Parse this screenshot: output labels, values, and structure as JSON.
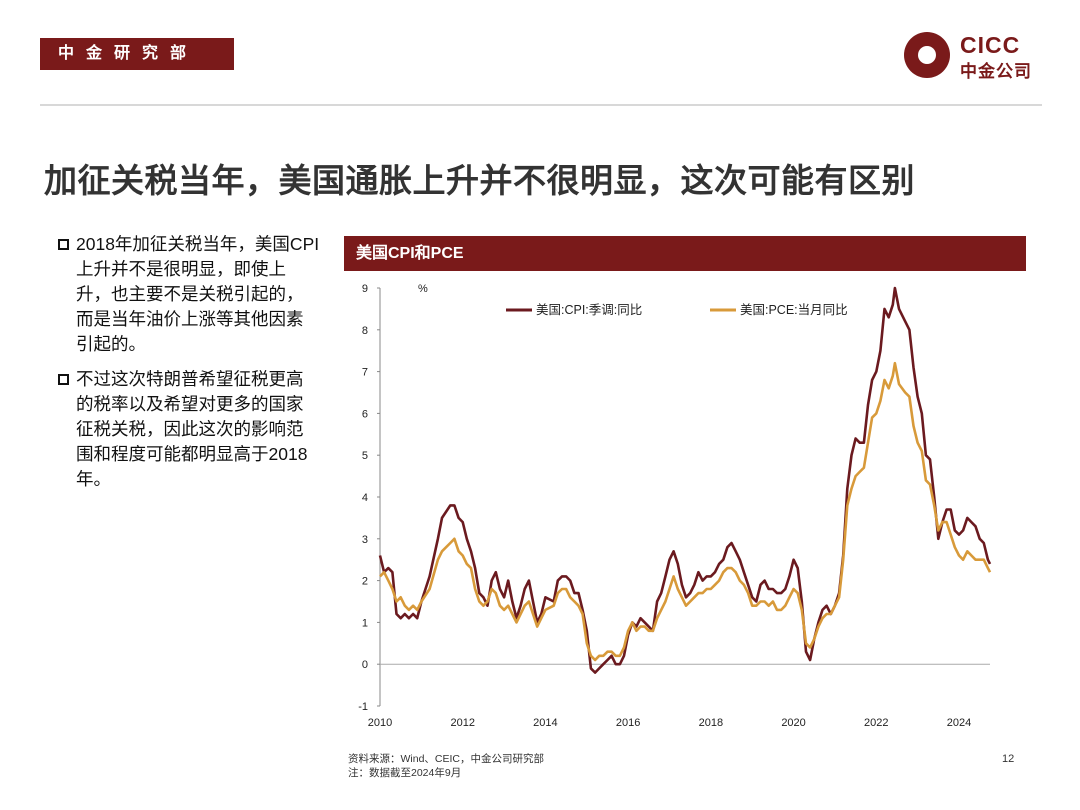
{
  "header": {
    "dept": "中金研究部",
    "logo_en": "CICC",
    "logo_cn": "中金公司"
  },
  "title": "加征关税当年，美国通胀上升并不很明显，这次可能有区别",
  "bullets": [
    "2018年加征关税当年，美国CPI上升并不是很明显，即使上升，也主要不是关税引起的，而是当年油价上涨等其他因素引起的。",
    "不过这次特朗普希望征税更高的税率以及希望对更多的国家征税关税，因此这次的影响范围和程度可能都明显高于2018年。"
  ],
  "chart_data": {
    "type": "line",
    "title": "美国CPI和PCE",
    "ylabel": "%",
    "xlabel": "",
    "ylim": [
      -1,
      9
    ],
    "yticks": [
      "-1",
      "0",
      "1",
      "2",
      "3",
      "4",
      "5",
      "6",
      "7",
      "8",
      "9"
    ],
    "xlim": [
      2010,
      2024.75
    ],
    "xticks": [
      "2010",
      "2012",
      "2014",
      "2016",
      "2018",
      "2020",
      "2022",
      "2024"
    ],
    "legend_position": "top",
    "series": [
      {
        "name": "美国:CPI:季调:同比",
        "color": "#6b1a1f",
        "points": [
          [
            2010.0,
            2.6
          ],
          [
            2010.1,
            2.2
          ],
          [
            2010.2,
            2.3
          ],
          [
            2010.3,
            2.2
          ],
          [
            2010.4,
            1.2
          ],
          [
            2010.5,
            1.1
          ],
          [
            2010.6,
            1.2
          ],
          [
            2010.7,
            1.1
          ],
          [
            2010.8,
            1.2
          ],
          [
            2010.9,
            1.1
          ],
          [
            2011.0,
            1.5
          ],
          [
            2011.2,
            2.1
          ],
          [
            2011.4,
            3.0
          ],
          [
            2011.5,
            3.5
          ],
          [
            2011.7,
            3.8
          ],
          [
            2011.8,
            3.8
          ],
          [
            2011.9,
            3.5
          ],
          [
            2012.0,
            3.4
          ],
          [
            2012.1,
            3.0
          ],
          [
            2012.2,
            2.7
          ],
          [
            2012.3,
            2.3
          ],
          [
            2012.4,
            1.7
          ],
          [
            2012.5,
            1.6
          ],
          [
            2012.6,
            1.4
          ],
          [
            2012.7,
            2.0
          ],
          [
            2012.8,
            2.2
          ],
          [
            2012.9,
            1.8
          ],
          [
            2013.0,
            1.6
          ],
          [
            2013.1,
            2.0
          ],
          [
            2013.2,
            1.5
          ],
          [
            2013.3,
            1.1
          ],
          [
            2013.4,
            1.4
          ],
          [
            2013.5,
            1.8
          ],
          [
            2013.6,
            2.0
          ],
          [
            2013.7,
            1.5
          ],
          [
            2013.8,
            1.0
          ],
          [
            2013.9,
            1.2
          ],
          [
            2014.0,
            1.6
          ],
          [
            2014.2,
            1.5
          ],
          [
            2014.3,
            2.0
          ],
          [
            2014.4,
            2.1
          ],
          [
            2014.5,
            2.1
          ],
          [
            2014.6,
            2.0
          ],
          [
            2014.7,
            1.7
          ],
          [
            2014.8,
            1.7
          ],
          [
            2014.9,
            1.3
          ],
          [
            2015.0,
            0.8
          ],
          [
            2015.1,
            -0.1
          ],
          [
            2015.2,
            -0.2
          ],
          [
            2015.3,
            -0.1
          ],
          [
            2015.4,
            0.0
          ],
          [
            2015.5,
            0.1
          ],
          [
            2015.6,
            0.2
          ],
          [
            2015.7,
            0.0
          ],
          [
            2015.8,
            0.0
          ],
          [
            2015.9,
            0.2
          ],
          [
            2016.0,
            0.7
          ],
          [
            2016.1,
            1.0
          ],
          [
            2016.2,
            0.9
          ],
          [
            2016.3,
            1.1
          ],
          [
            2016.4,
            1.0
          ],
          [
            2016.5,
            0.9
          ],
          [
            2016.6,
            0.8
          ],
          [
            2016.7,
            1.5
          ],
          [
            2016.8,
            1.7
          ],
          [
            2016.9,
            2.1
          ],
          [
            2017.0,
            2.5
          ],
          [
            2017.1,
            2.7
          ],
          [
            2017.2,
            2.4
          ],
          [
            2017.3,
            1.9
          ],
          [
            2017.4,
            1.6
          ],
          [
            2017.5,
            1.7
          ],
          [
            2017.6,
            1.9
          ],
          [
            2017.7,
            2.2
          ],
          [
            2017.8,
            2.0
          ],
          [
            2017.9,
            2.1
          ],
          [
            2018.0,
            2.1
          ],
          [
            2018.1,
            2.2
          ],
          [
            2018.2,
            2.4
          ],
          [
            2018.3,
            2.5
          ],
          [
            2018.4,
            2.8
          ],
          [
            2018.5,
            2.9
          ],
          [
            2018.6,
            2.7
          ],
          [
            2018.7,
            2.5
          ],
          [
            2018.8,
            2.2
          ],
          [
            2018.9,
            1.9
          ],
          [
            2019.0,
            1.6
          ],
          [
            2019.1,
            1.5
          ],
          [
            2019.2,
            1.9
          ],
          [
            2019.3,
            2.0
          ],
          [
            2019.4,
            1.8
          ],
          [
            2019.5,
            1.8
          ],
          [
            2019.6,
            1.7
          ],
          [
            2019.7,
            1.7
          ],
          [
            2019.8,
            1.8
          ],
          [
            2019.9,
            2.1
          ],
          [
            2020.0,
            2.5
          ],
          [
            2020.1,
            2.3
          ],
          [
            2020.2,
            1.5
          ],
          [
            2020.3,
            0.3
          ],
          [
            2020.4,
            0.1
          ],
          [
            2020.5,
            0.6
          ],
          [
            2020.6,
            1.0
          ],
          [
            2020.7,
            1.3
          ],
          [
            2020.8,
            1.4
          ],
          [
            2020.9,
            1.2
          ],
          [
            2021.0,
            1.4
          ],
          [
            2021.1,
            1.7
          ],
          [
            2021.2,
            2.6
          ],
          [
            2021.3,
            4.2
          ],
          [
            2021.4,
            5.0
          ],
          [
            2021.5,
            5.4
          ],
          [
            2021.6,
            5.3
          ],
          [
            2021.7,
            5.3
          ],
          [
            2021.8,
            6.2
          ],
          [
            2021.9,
            6.8
          ],
          [
            2022.0,
            7.0
          ],
          [
            2022.1,
            7.5
          ],
          [
            2022.2,
            8.5
          ],
          [
            2022.3,
            8.3
          ],
          [
            2022.4,
            8.6
          ],
          [
            2022.45,
            9.0
          ],
          [
            2022.55,
            8.5
          ],
          [
            2022.7,
            8.2
          ],
          [
            2022.8,
            8.0
          ],
          [
            2022.9,
            7.1
          ],
          [
            2023.0,
            6.4
          ],
          [
            2023.1,
            6.0
          ],
          [
            2023.2,
            5.0
          ],
          [
            2023.3,
            4.9
          ],
          [
            2023.4,
            4.0
          ],
          [
            2023.5,
            3.0
          ],
          [
            2023.6,
            3.4
          ],
          [
            2023.7,
            3.7
          ],
          [
            2023.8,
            3.7
          ],
          [
            2023.9,
            3.2
          ],
          [
            2024.0,
            3.1
          ],
          [
            2024.1,
            3.2
          ],
          [
            2024.2,
            3.5
          ],
          [
            2024.3,
            3.4
          ],
          [
            2024.4,
            3.3
          ],
          [
            2024.5,
            3.0
          ],
          [
            2024.6,
            2.9
          ],
          [
            2024.7,
            2.5
          ],
          [
            2024.75,
            2.4
          ]
        ]
      },
      {
        "name": "美国:PCE:当月同比",
        "color": "#d89a3a",
        "points": [
          [
            2010.0,
            2.1
          ],
          [
            2010.1,
            2.2
          ],
          [
            2010.2,
            2.0
          ],
          [
            2010.3,
            1.8
          ],
          [
            2010.4,
            1.5
          ],
          [
            2010.5,
            1.6
          ],
          [
            2010.6,
            1.4
          ],
          [
            2010.7,
            1.3
          ],
          [
            2010.8,
            1.4
          ],
          [
            2010.9,
            1.3
          ],
          [
            2011.0,
            1.5
          ],
          [
            2011.2,
            1.8
          ],
          [
            2011.4,
            2.5
          ],
          [
            2011.5,
            2.7
          ],
          [
            2011.7,
            2.9
          ],
          [
            2011.8,
            3.0
          ],
          [
            2011.9,
            2.7
          ],
          [
            2012.0,
            2.6
          ],
          [
            2012.1,
            2.4
          ],
          [
            2012.2,
            2.3
          ],
          [
            2012.3,
            1.8
          ],
          [
            2012.4,
            1.5
          ],
          [
            2012.5,
            1.4
          ],
          [
            2012.6,
            1.5
          ],
          [
            2012.7,
            1.8
          ],
          [
            2012.8,
            1.7
          ],
          [
            2012.9,
            1.4
          ],
          [
            2013.0,
            1.3
          ],
          [
            2013.1,
            1.4
          ],
          [
            2013.2,
            1.2
          ],
          [
            2013.3,
            1.0
          ],
          [
            2013.4,
            1.2
          ],
          [
            2013.5,
            1.4
          ],
          [
            2013.6,
            1.5
          ],
          [
            2013.7,
            1.2
          ],
          [
            2013.8,
            0.9
          ],
          [
            2013.9,
            1.1
          ],
          [
            2014.0,
            1.3
          ],
          [
            2014.2,
            1.4
          ],
          [
            2014.3,
            1.7
          ],
          [
            2014.4,
            1.8
          ],
          [
            2014.5,
            1.8
          ],
          [
            2014.6,
            1.6
          ],
          [
            2014.7,
            1.5
          ],
          [
            2014.8,
            1.4
          ],
          [
            2014.9,
            1.2
          ],
          [
            2015.0,
            0.5
          ],
          [
            2015.1,
            0.2
          ],
          [
            2015.2,
            0.1
          ],
          [
            2015.3,
            0.2
          ],
          [
            2015.4,
            0.2
          ],
          [
            2015.5,
            0.3
          ],
          [
            2015.6,
            0.3
          ],
          [
            2015.7,
            0.2
          ],
          [
            2015.8,
            0.2
          ],
          [
            2015.9,
            0.4
          ],
          [
            2016.0,
            0.8
          ],
          [
            2016.1,
            1.0
          ],
          [
            2016.2,
            0.8
          ],
          [
            2016.3,
            0.9
          ],
          [
            2016.4,
            0.9
          ],
          [
            2016.5,
            0.8
          ],
          [
            2016.6,
            0.8
          ],
          [
            2016.7,
            1.1
          ],
          [
            2016.8,
            1.3
          ],
          [
            2016.9,
            1.5
          ],
          [
            2017.0,
            1.8
          ],
          [
            2017.1,
            2.1
          ],
          [
            2017.2,
            1.8
          ],
          [
            2017.3,
            1.6
          ],
          [
            2017.4,
            1.4
          ],
          [
            2017.5,
            1.5
          ],
          [
            2017.6,
            1.6
          ],
          [
            2017.7,
            1.7
          ],
          [
            2017.8,
            1.7
          ],
          [
            2017.9,
            1.8
          ],
          [
            2018.0,
            1.8
          ],
          [
            2018.1,
            1.9
          ],
          [
            2018.2,
            2.0
          ],
          [
            2018.3,
            2.2
          ],
          [
            2018.4,
            2.3
          ],
          [
            2018.5,
            2.3
          ],
          [
            2018.6,
            2.2
          ],
          [
            2018.7,
            2.0
          ],
          [
            2018.8,
            1.9
          ],
          [
            2018.9,
            1.7
          ],
          [
            2019.0,
            1.4
          ],
          [
            2019.1,
            1.4
          ],
          [
            2019.2,
            1.5
          ],
          [
            2019.3,
            1.5
          ],
          [
            2019.4,
            1.4
          ],
          [
            2019.5,
            1.5
          ],
          [
            2019.6,
            1.3
          ],
          [
            2019.7,
            1.3
          ],
          [
            2019.8,
            1.4
          ],
          [
            2019.9,
            1.6
          ],
          [
            2020.0,
            1.8
          ],
          [
            2020.1,
            1.7
          ],
          [
            2020.2,
            1.3
          ],
          [
            2020.3,
            0.5
          ],
          [
            2020.4,
            0.4
          ],
          [
            2020.5,
            0.6
          ],
          [
            2020.6,
            0.9
          ],
          [
            2020.7,
            1.1
          ],
          [
            2020.8,
            1.2
          ],
          [
            2020.9,
            1.2
          ],
          [
            2021.0,
            1.4
          ],
          [
            2021.1,
            1.6
          ],
          [
            2021.2,
            2.5
          ],
          [
            2021.3,
            3.8
          ],
          [
            2021.4,
            4.2
          ],
          [
            2021.5,
            4.5
          ],
          [
            2021.6,
            4.6
          ],
          [
            2021.7,
            4.7
          ],
          [
            2021.8,
            5.3
          ],
          [
            2021.9,
            5.9
          ],
          [
            2022.0,
            6.0
          ],
          [
            2022.1,
            6.3
          ],
          [
            2022.2,
            6.8
          ],
          [
            2022.3,
            6.6
          ],
          [
            2022.4,
            6.9
          ],
          [
            2022.45,
            7.2
          ],
          [
            2022.55,
            6.7
          ],
          [
            2022.7,
            6.5
          ],
          [
            2022.8,
            6.4
          ],
          [
            2022.9,
            5.7
          ],
          [
            2023.0,
            5.3
          ],
          [
            2023.1,
            5.1
          ],
          [
            2023.2,
            4.4
          ],
          [
            2023.3,
            4.3
          ],
          [
            2023.4,
            3.8
          ],
          [
            2023.5,
            3.2
          ],
          [
            2023.6,
            3.4
          ],
          [
            2023.7,
            3.4
          ],
          [
            2023.8,
            3.1
          ],
          [
            2023.9,
            2.8
          ],
          [
            2024.0,
            2.6
          ],
          [
            2024.1,
            2.5
          ],
          [
            2024.2,
            2.7
          ],
          [
            2024.3,
            2.6
          ],
          [
            2024.4,
            2.5
          ],
          [
            2024.5,
            2.5
          ],
          [
            2024.6,
            2.5
          ],
          [
            2024.7,
            2.3
          ],
          [
            2024.75,
            2.2
          ]
        ]
      }
    ]
  },
  "footer": {
    "source": "资料来源：Wind、CEIC，中金公司研究部",
    "note": "注：数据截至2024年9月",
    "page": "12"
  }
}
